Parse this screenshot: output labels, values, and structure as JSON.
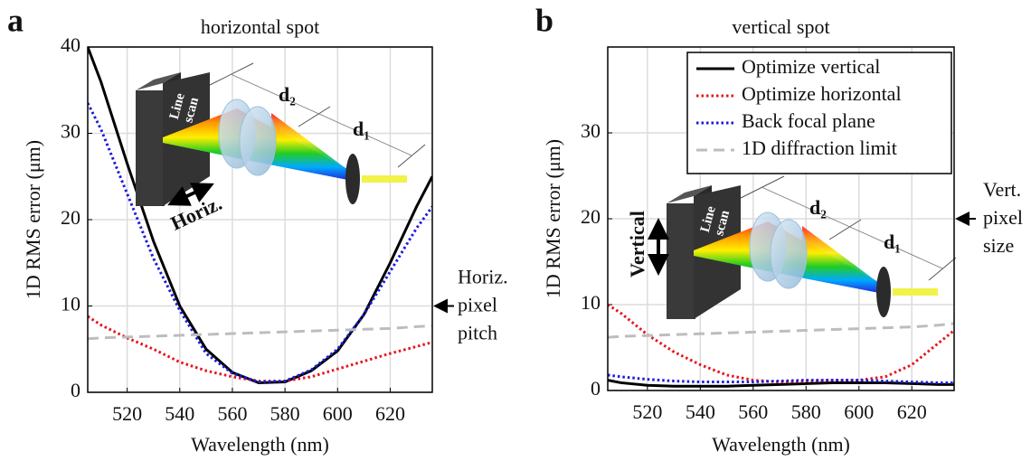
{
  "chart_data": [
    {
      "type": "line",
      "panel_label": "a",
      "title": "horizontal spot",
      "xlabel": "Wavelength (nm)",
      "ylabel": "1D RMS error (μm)",
      "x": [
        505,
        510,
        520,
        530,
        540,
        550,
        560,
        570,
        580,
        590,
        600,
        610,
        620,
        630,
        636
      ],
      "series": [
        {
          "color": "#000000",
          "dash": "solid",
          "values": [
            40,
            36,
            26.5,
            17.5,
            10,
            5,
            2.3,
            1.1,
            1.2,
            2.5,
            4.8,
            9,
            15,
            21.5,
            25
          ]
        },
        {
          "color": "#e8141c",
          "dash": "dotted",
          "values": [
            8.8,
            7.8,
            6.3,
            5,
            3.5,
            2.5,
            1.8,
            1.3,
            1.3,
            1.8,
            2.7,
            3.6,
            4.5,
            5.3,
            5.8
          ]
        },
        {
          "color": "#1a1adb",
          "dash": "dotted",
          "values": [
            33.5,
            30.5,
            23,
            15.5,
            9.5,
            4.5,
            2.2,
            1.2,
            1.3,
            2.6,
            5,
            9,
            14,
            19,
            21.5
          ]
        },
        {
          "color": "#bdbdbd",
          "dash": "dashed",
          "values": [
            6.2,
            6.3,
            6.4,
            6.5,
            6.6,
            6.7,
            6.8,
            6.9,
            7.0,
            7.1,
            7.2,
            7.3,
            7.4,
            7.6,
            7.7
          ]
        }
      ],
      "xlim": [
        505,
        636
      ],
      "xticks": [
        520,
        540,
        560,
        580,
        600,
        620
      ],
      "ylim": [
        0,
        40
      ],
      "yticks": [
        0,
        10,
        20,
        30,
        40
      ],
      "grid": true,
      "annotation": {
        "value": 10,
        "lines": [
          "Horiz.",
          "pixel",
          "pitch"
        ]
      },
      "inset": {
        "box": [
          "Line",
          "scan"
        ],
        "d2": "d₂",
        "d1": "d₁",
        "motion": "Horiz."
      }
    },
    {
      "type": "line",
      "panel_label": "b",
      "title": "vertical spot",
      "xlabel": "Wavelength (nm)",
      "ylabel": "1D RMS error (μm)",
      "x": [
        505,
        510,
        520,
        530,
        540,
        550,
        560,
        570,
        580,
        590,
        600,
        610,
        620,
        630,
        636
      ],
      "series": [
        {
          "name": "Optimize vertical",
          "color": "#000000",
          "dash": "solid",
          "values": [
            1.2,
            0.9,
            0.6,
            0.5,
            0.5,
            0.5,
            0.6,
            0.7,
            0.8,
            0.9,
            0.9,
            0.9,
            0.8,
            0.7,
            0.7
          ]
        },
        {
          "name": "Optimize horizontal",
          "color": "#e8141c",
          "dash": "dotted",
          "values": [
            10,
            9,
            6.5,
            4.5,
            3,
            1.8,
            1.2,
            1.0,
            1.1,
            1.2,
            1.2,
            1.6,
            3.0,
            5.5,
            7
          ]
        },
        {
          "name": "Back focal plane",
          "color": "#1a1adb",
          "dash": "dotted",
          "values": [
            1.8,
            1.6,
            1.3,
            1.1,
            1.0,
            1.0,
            1.0,
            1.1,
            1.2,
            1.2,
            1.2,
            1.1,
            1.0,
            0.9,
            0.9
          ]
        },
        {
          "name": "1D diffraction limit",
          "color": "#bdbdbd",
          "dash": "dashed",
          "values": [
            6.2,
            6.3,
            6.4,
            6.5,
            6.6,
            6.7,
            6.8,
            6.9,
            7.0,
            7.1,
            7.2,
            7.3,
            7.4,
            7.6,
            7.8
          ]
        }
      ],
      "xlim": [
        505,
        636
      ],
      "xticks": [
        520,
        540,
        560,
        580,
        600,
        620
      ],
      "ylim": [
        0,
        40
      ],
      "yticks": [
        0,
        10,
        20,
        30
      ],
      "grid": true,
      "legend": "upper right",
      "annotation": {
        "value": 20,
        "lines": [
          "Vert.",
          "pixel",
          "size"
        ]
      },
      "inset": {
        "box": [
          "Line",
          "scan"
        ],
        "d2": "d₂",
        "d1": "d₁",
        "motion": "Vertical"
      }
    }
  ]
}
